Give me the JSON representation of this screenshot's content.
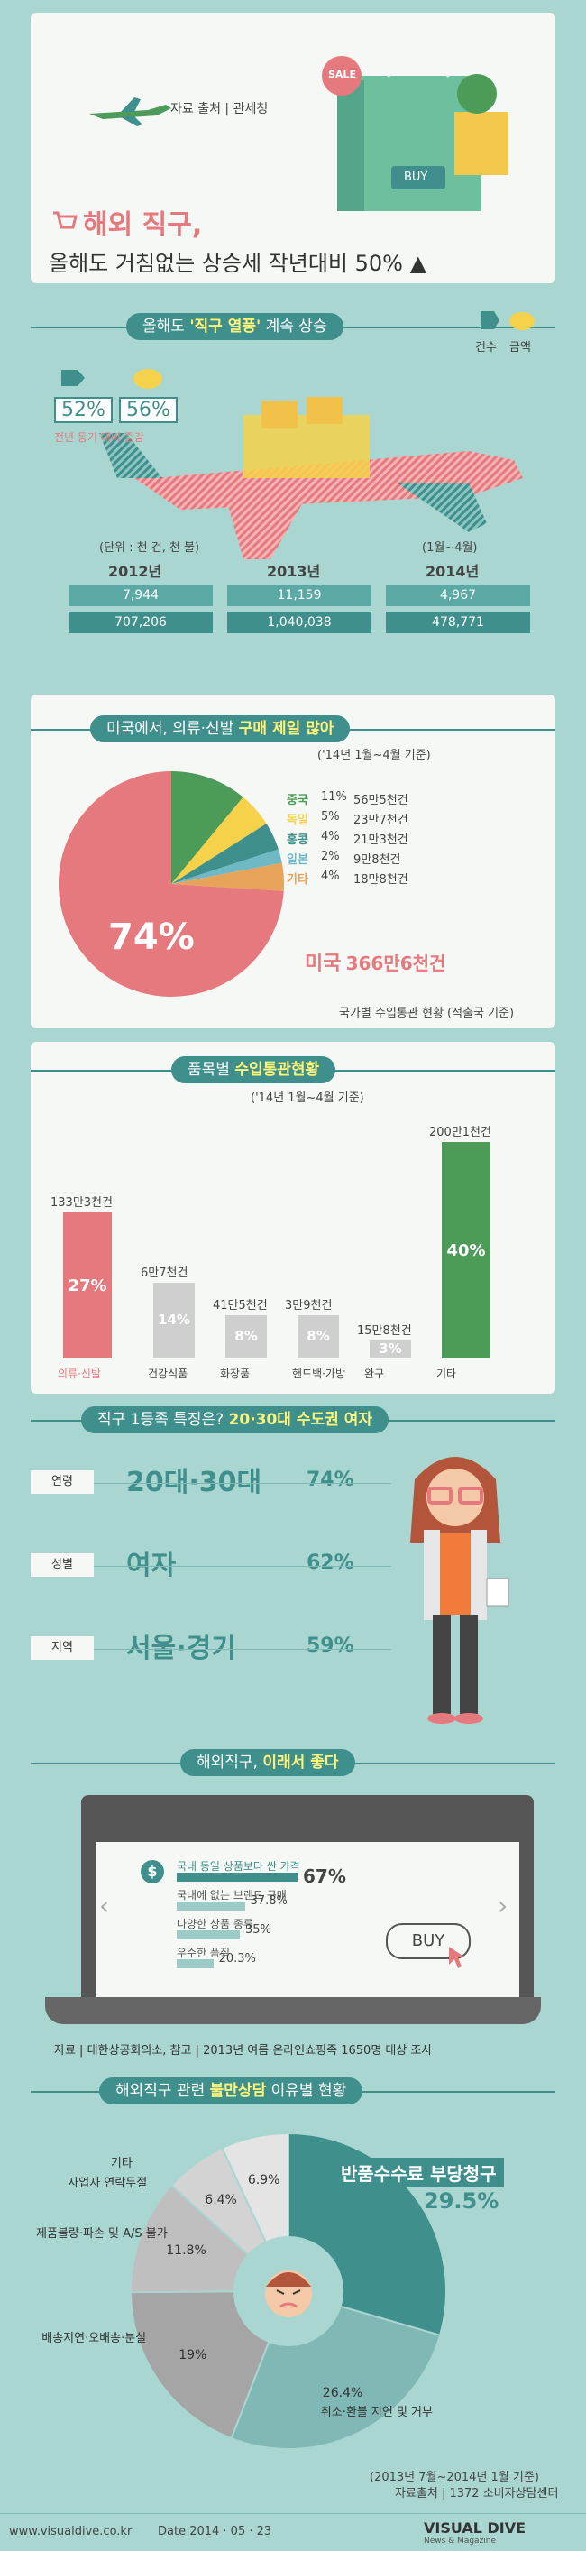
{
  "header": {
    "source": "자료 출처 | 관세청",
    "sale_tag": "SALE",
    "buy_tag": "BUY",
    "title": "해외 직구,",
    "subtitle": "올해도 거침없는 상승세 작년대비 50% ▲"
  },
  "section1": {
    "title_pre": "올해도 ",
    "title_bold": "'직구 열풍'",
    "title_post": " 계속 상승",
    "legend_count": "건수",
    "legend_amount": "금액",
    "pct_count": "52%",
    "pct_amount": "56%",
    "pct_note": "전년 동기 대비 증감",
    "unit": "(단위 : 천 건, 천 불)",
    "period_note": "(1월~4월)",
    "years": [
      "2012년",
      "2013년",
      "2014년"
    ],
    "counts": [
      "7,944",
      "11,159",
      "4,967"
    ],
    "amounts": [
      "707,206",
      "1,040,038",
      "478,771"
    ]
  },
  "section2": {
    "title_pre": "미국에서, 의류·신발 ",
    "title_bold": "구매 제일 많아",
    "period": "('14년 1월~4월 기준)",
    "main_pct": "74%",
    "main_name": "미국",
    "main_value": "366만6천건",
    "source": "국가별 수입통관 현황 (적출국 기준)"
  },
  "section3": {
    "title_pre": "품목별 ",
    "title_bold": "수입통관현황",
    "period": "('14년 1월~4월 기준)",
    "items": [
      {
        "name": "의류·신발",
        "value": "133만3천건",
        "pct": "27%"
      },
      {
        "name": "건강식품",
        "value": "6만7천건",
        "pct": "14%"
      },
      {
        "name": "화장품",
        "value": "41만5천건",
        "pct": "8%"
      },
      {
        "name": "핸드백·가방",
        "value": "3만9천건",
        "pct": "8%"
      },
      {
        "name": "완구",
        "value": "15만8천건",
        "pct": "3%"
      },
      {
        "name": "기타",
        "value": "200만1천건",
        "pct": "40%"
      }
    ]
  },
  "section4": {
    "title_pre": "직구 1등족 특징은? ",
    "title_bold": "20·30대 수도권 여자",
    "rows": [
      {
        "label": "연령",
        "value": "20대·30대",
        "pct": "74%"
      },
      {
        "label": "성별",
        "value": "여자",
        "pct": "62%"
      },
      {
        "label": "지역",
        "value": "서울·경기",
        "pct": "59%"
      }
    ]
  },
  "section5": {
    "title_pre": "해외직구, ",
    "title_bold": "이래서 좋다",
    "buy": "BUY",
    "source": "자료 | 대한상공회의소, 참고 | 2013년 여름 온라인쇼핑족 1650명 대상 조사"
  },
  "section6": {
    "title_pre": "해외직구 관련 ",
    "title_bold": "불만상담",
    "title_post": " 이유별 현황",
    "highlight_label": "반품수수료 부당청구",
    "highlight_pct": "29.5%",
    "period": "(2013년 7월~2014년 1월 기준)",
    "source": "자료출처 | 1372 소비자상담센터"
  },
  "footer": {
    "site": "www.visualdive.co.kr",
    "date": "Date  2014 · 05 · 23",
    "brand": "VISUAL DIVE",
    "brand_sub": "News & Magazine"
  },
  "colors": {
    "bg": "#a9d6d1",
    "teal": "#3f8f8c",
    "pink": "#e6797d",
    "yellow": "#f5d24a",
    "green": "#4c9b59"
  },
  "chart_data": [
    {
      "type": "bar",
      "categories": [
        "2012년",
        "2013년",
        "2014년"
      ],
      "series": [
        {
          "name": "건수",
          "values": [
            7944,
            11159,
            4967
          ]
        },
        {
          "name": "금액",
          "values": [
            707206,
            1040038,
            478771
          ]
        }
      ],
      "title": "올해도 '직구 열풍' 계속 상승"
    },
    {
      "type": "pie",
      "title": "미국에서, 의류·신발 구매 제일 많아",
      "slices": [
        {
          "label": "미국",
          "pct": 74,
          "value": "366만6천건",
          "color": "#e6797d"
        },
        {
          "label": "중국",
          "pct": 11,
          "value": "56만5천건",
          "color": "#4c9b59"
        },
        {
          "label": "독일",
          "pct": 5,
          "value": "23만7천건",
          "color": "#f5d24a"
        },
        {
          "label": "홍콩",
          "pct": 4,
          "value": "21만3천건",
          "color": "#3f8f8c"
        },
        {
          "label": "일본",
          "pct": 2,
          "value": "9만8천건",
          "color": "#6fb9c4"
        },
        {
          "label": "기타",
          "pct": 4,
          "value": "18만8천건",
          "color": "#e8a35a"
        }
      ]
    },
    {
      "type": "bar",
      "title": "품목별 수입통관현황",
      "categories": [
        "의류·신발",
        "건강식품",
        "화장품",
        "핸드백·가방",
        "완구",
        "기타"
      ],
      "values": [
        27,
        14,
        8,
        8,
        3,
        40
      ]
    },
    {
      "type": "bar",
      "title": "해외직구, 이래서 좋다",
      "categories": [
        "국내 동일 상품보다 싼 가격",
        "국내에 없는 브랜드 구매",
        "다양한 상품 종류",
        "우수한 품질"
      ],
      "values": [
        67,
        37.8,
        35,
        20.3
      ],
      "labels": [
        "67%",
        "37.8%",
        "35%",
        "20.3%"
      ]
    },
    {
      "type": "pie",
      "title": "해외직구 관련 불만상담 이유별 현황",
      "slices": [
        {
          "label": "반품수수료 부당청구",
          "pct": 29.5,
          "text": "29.5%",
          "color": "#3f8f8c"
        },
        {
          "label": "취소·환불 지연 및 거부",
          "pct": 26.4,
          "text": "26.4%",
          "color": "#7fb8b4"
        },
        {
          "label": "배송지연·오배송·분실",
          "pct": 19,
          "text": "19%",
          "color": "#a5a5a5"
        },
        {
          "label": "제품불량·파손 및 A/S 불가",
          "pct": 11.8,
          "text": "11.8%",
          "color": "#bfbfbf"
        },
        {
          "label": "사업자 연락두절",
          "pct": 6.4,
          "text": "6.4%",
          "color": "#d3d3d3"
        },
        {
          "label": "기타",
          "pct": 6.9,
          "text": "6.9%",
          "color": "#e4e4e4"
        }
      ]
    }
  ]
}
